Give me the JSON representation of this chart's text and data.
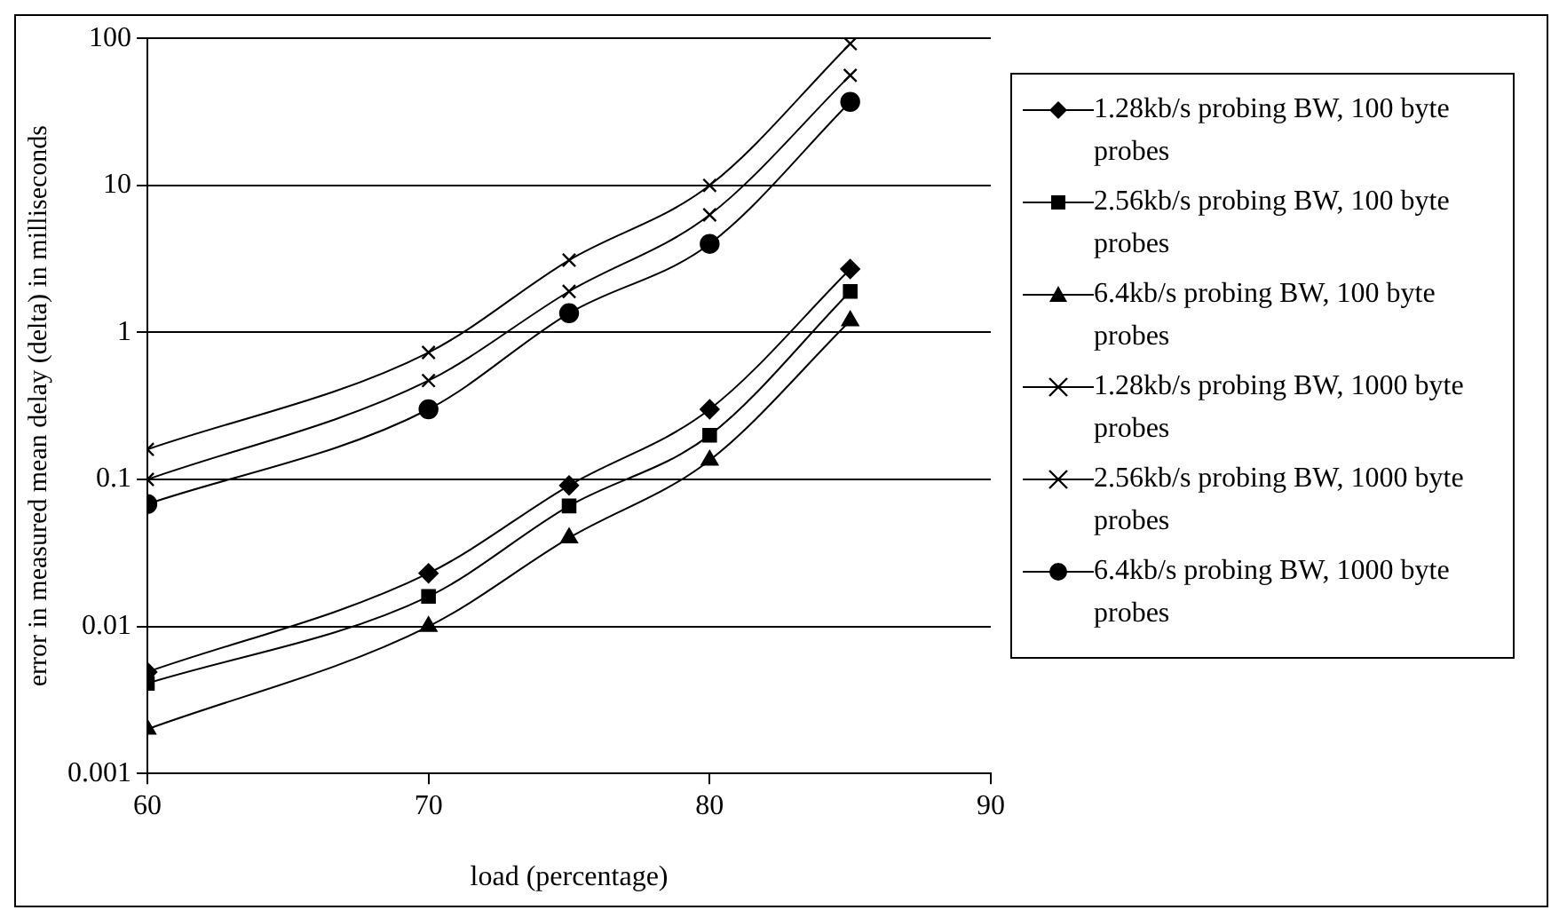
{
  "chart_data": {
    "type": "line",
    "xlabel": "load (percentage)",
    "ylabel": "error in measured mean delay (delta) in milliseconds",
    "x": [
      60,
      70,
      75,
      80,
      85
    ],
    "series": [
      {
        "name": "1.28kb/s probing BW, 100 byte probes",
        "color": "#000000",
        "marker": "diamond",
        "values": [
          0.0049,
          0.023,
          0.091,
          0.3,
          2.7
        ]
      },
      {
        "name": "2.56kb/s probing BW, 100 byte probes",
        "color": "#000000",
        "marker": "square",
        "values": [
          0.0041,
          0.016,
          0.066,
          0.2,
          1.9
        ]
      },
      {
        "name": "6.4kb/s probing BW, 100 byte probes",
        "color": "#000000",
        "marker": "triangle",
        "values": [
          0.002,
          0.01,
          0.04,
          0.135,
          1.2
        ]
      },
      {
        "name": "1.28kb/s probing BW, 1000 byte probes",
        "color": "#000000",
        "marker": "cross",
        "values": [
          0.16,
          0.73,
          3.1,
          10,
          92
        ]
      },
      {
        "name": "2.56kb/s probing BW, 1000 byte probes",
        "color": "#000000",
        "marker": "cross",
        "values": [
          0.1,
          0.47,
          1.9,
          6.3,
          56
        ]
      },
      {
        "name": "6.4kb/s probing BW, 1000 byte probes",
        "color": "#000000",
        "marker": "circle",
        "values": [
          0.068,
          0.3,
          1.35,
          4,
          37
        ]
      }
    ],
    "xlim": [
      60,
      90
    ],
    "xticks": [
      60,
      70,
      80,
      90
    ],
    "ylim": [
      0.001,
      100
    ],
    "yticks": [
      0.001,
      0.01,
      0.1,
      1,
      10,
      100
    ],
    "log": "y",
    "grid": "y",
    "legend": "right",
    "line_style": "solid"
  }
}
